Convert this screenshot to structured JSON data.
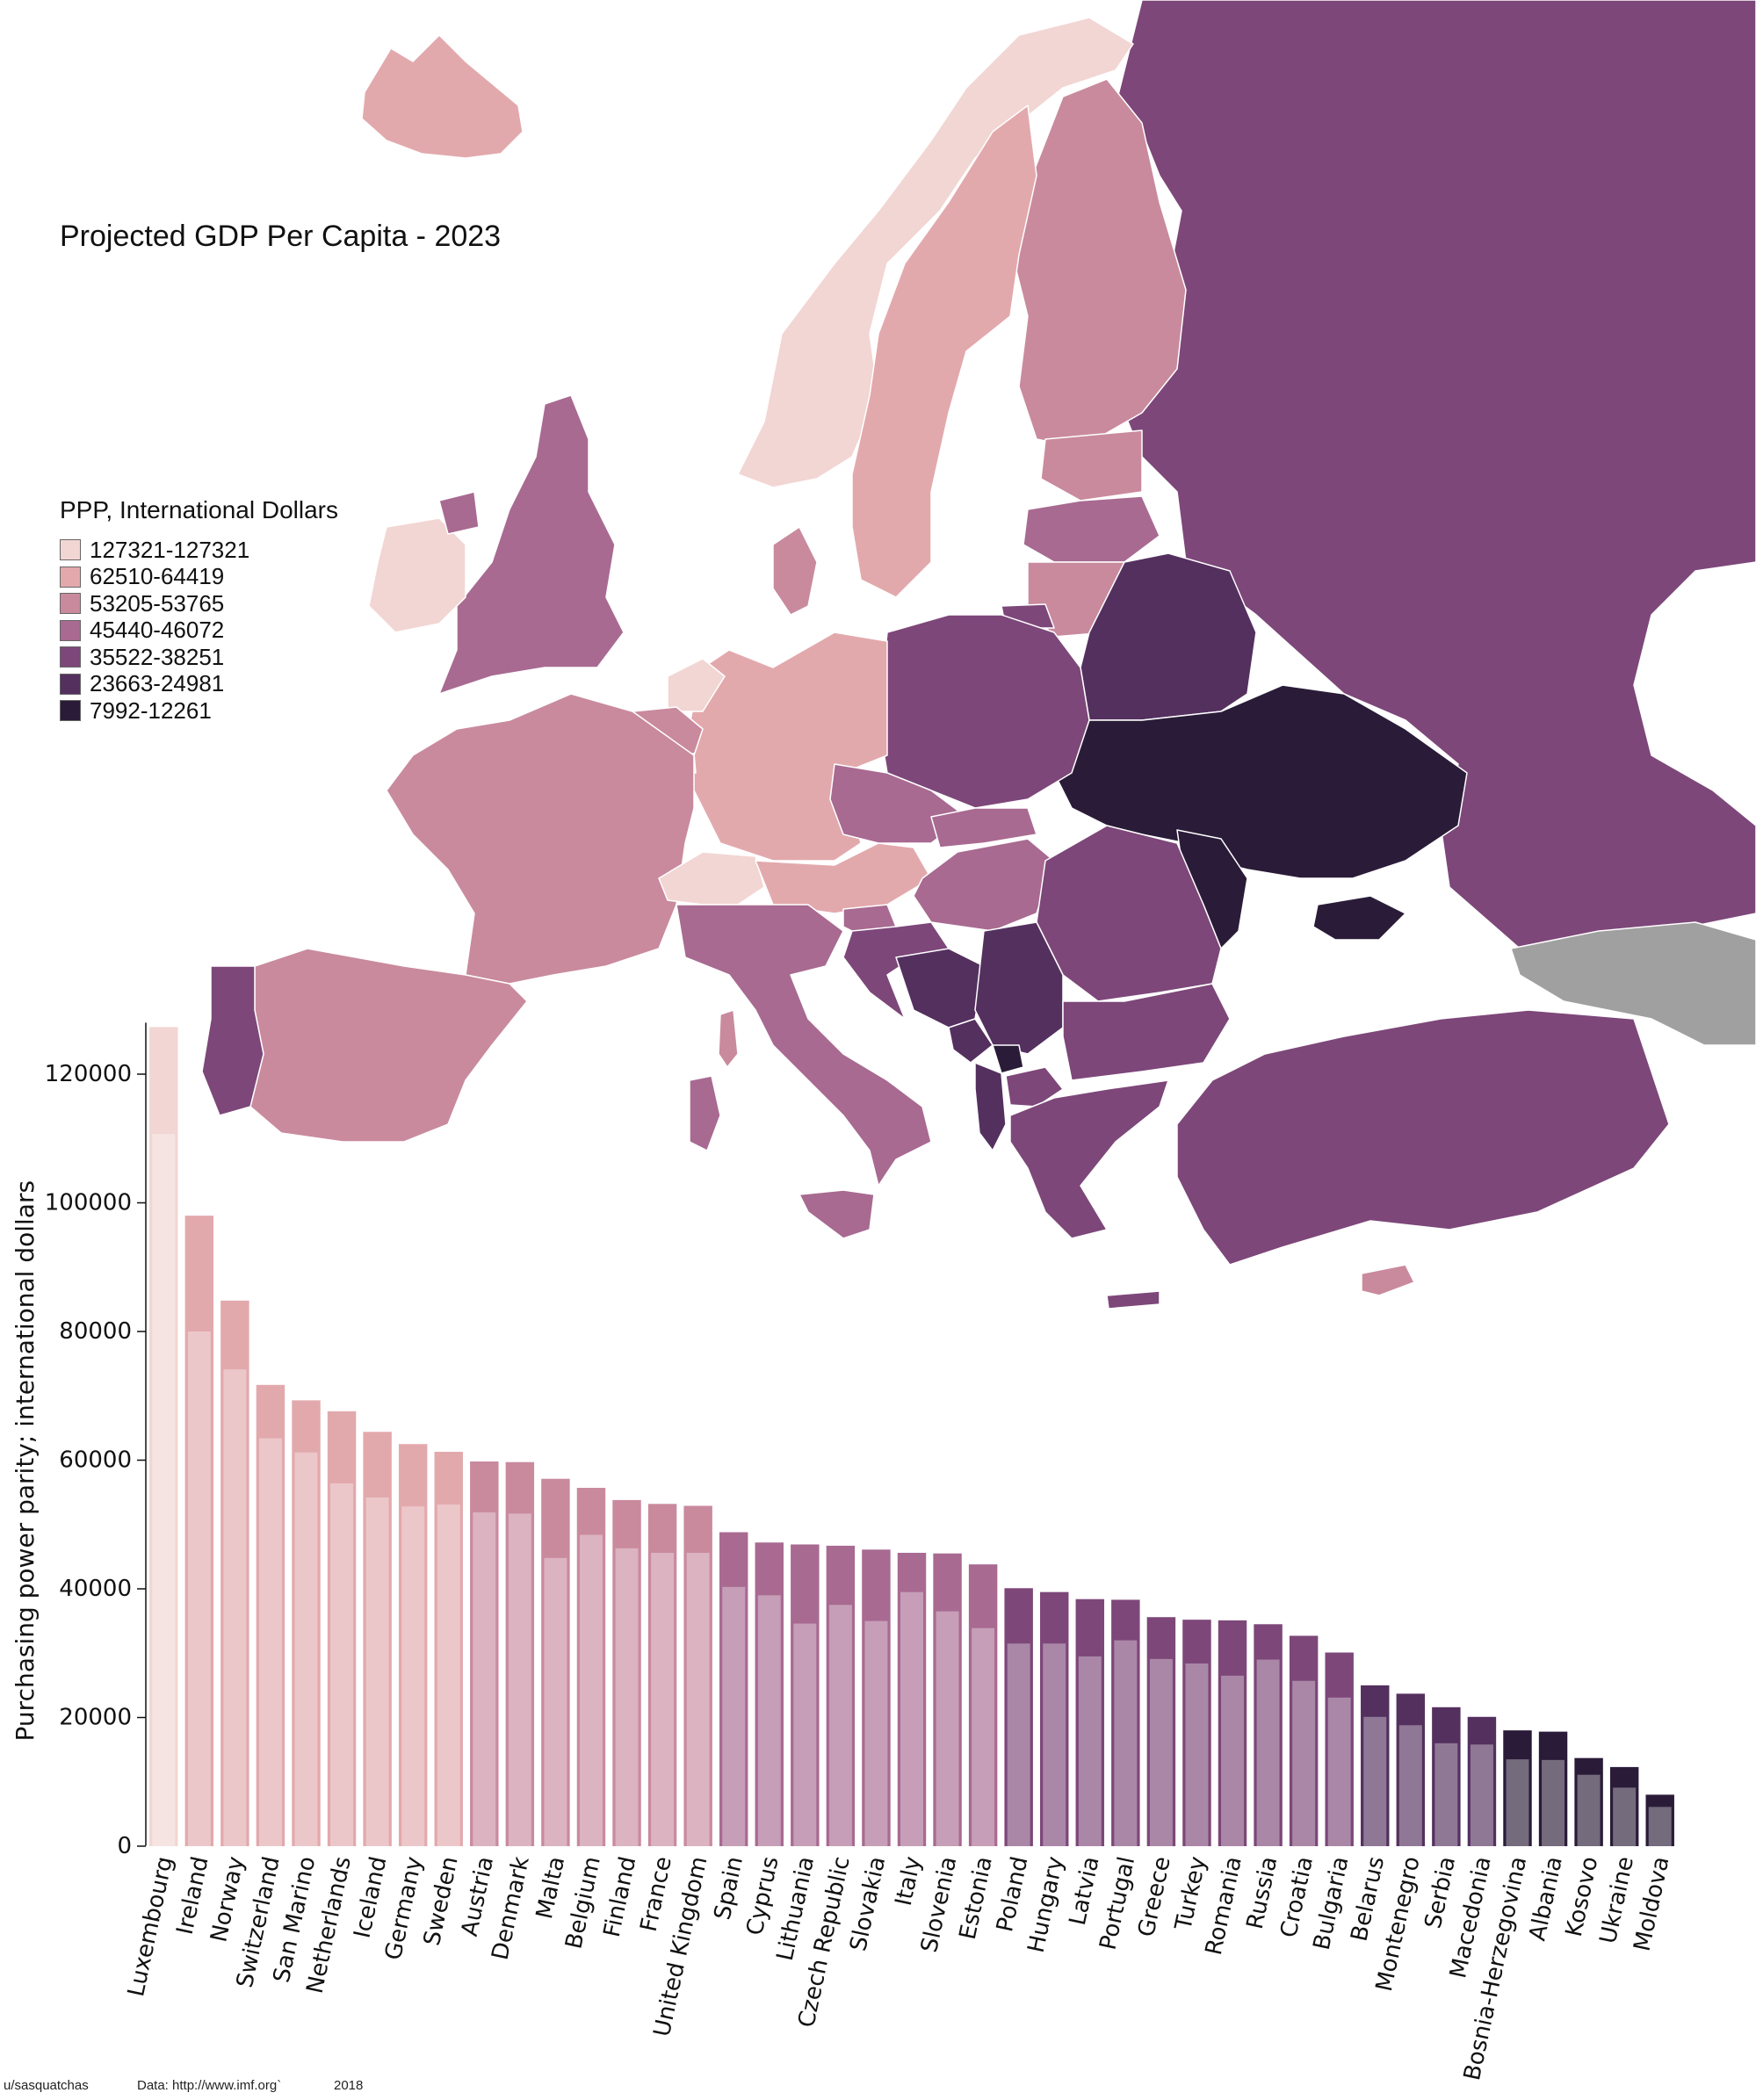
{
  "title": "Projected GDP Per Capita - 2023",
  "legend": {
    "title": "PPP, International Dollars",
    "items": [
      {
        "label": "127321-127321",
        "color": "#f2d6d3"
      },
      {
        "label": "62510-64419",
        "color": "#e2a9ad"
      },
      {
        "label": "53205-53765",
        "color": "#c98a9e"
      },
      {
        "label": "45440-46072",
        "color": "#a86a91"
      },
      {
        "label": "35522-38251",
        "color": "#7d4779"
      },
      {
        "label": "23663-24981",
        "color": "#54305f"
      },
      {
        "label": "7992-12261",
        "color": "#2a1c38"
      }
    ]
  },
  "map_colors": {
    "sea": "#ffffff",
    "unlisted": "#a0a0a0",
    "border": "#ffffff"
  },
  "chart_data": {
    "type": "bar",
    "title": "Projected GDP Per Capita - 2023",
    "xlabel": "",
    "ylabel": "Purchasing power parity; international dollars",
    "ylim": [
      0,
      128000
    ],
    "yticks": [
      0,
      20000,
      40000,
      60000,
      80000,
      100000,
      120000
    ],
    "categories": [
      "Luxembourg",
      "Ireland",
      "Norway",
      "Switzerland",
      "San Marino",
      "Netherlands",
      "Iceland",
      "Germany",
      "Sweden",
      "Austria",
      "Denmark",
      "Malta",
      "Belgium",
      "Finland",
      "France",
      "United Kingdom",
      "Spain",
      "Cyprus",
      "Lithuania",
      "Czech Republic",
      "Slovakia",
      "Italy",
      "Slovenia",
      "Estonia",
      "Poland",
      "Hungary",
      "Latvia",
      "Portugal",
      "Greece",
      "Turkey",
      "Romania",
      "Russia",
      "Croatia",
      "Bulgaria",
      "Belarus",
      "Montenegro",
      "Serbia",
      "Macedonia",
      "Bosnia-Herzegovina",
      "Albania",
      "Kosovo",
      "Ukraine",
      "Moldova"
    ],
    "series": [
      {
        "values": [
          127321,
          98000,
          84800,
          71700,
          69300,
          67600,
          64400,
          62500,
          61300,
          59800,
          59700,
          57100,
          55700,
          53800,
          53200,
          52900,
          48800,
          47200,
          46900,
          46700,
          46100,
          45600,
          45500,
          43800,
          40100,
          39500,
          38400,
          38300,
          35600,
          35200,
          35100,
          34500,
          32700,
          30100,
          25000,
          23700,
          21600,
          20100,
          18000,
          17800,
          13700,
          12300,
          8000
        ]
      },
      {
        "values": [
          110700,
          80000,
          74100,
          63400,
          61200,
          56400,
          54200,
          52800,
          53100,
          51900,
          51700,
          44800,
          48400,
          46300,
          45600,
          45600,
          40300,
          39000,
          34600,
          37500,
          35000,
          39500,
          36500,
          33900,
          31500,
          31500,
          29500,
          32000,
          29100,
          28400,
          26500,
          29000,
          25700,
          23100,
          20100,
          18800,
          16000,
          15800,
          13500,
          13400,
          11100,
          9100,
          6100
        ]
      }
    ]
  },
  "footer": {
    "author": "u/sasquatchas",
    "data_source": "Data: http://www.imf.org`",
    "year": "2018"
  }
}
